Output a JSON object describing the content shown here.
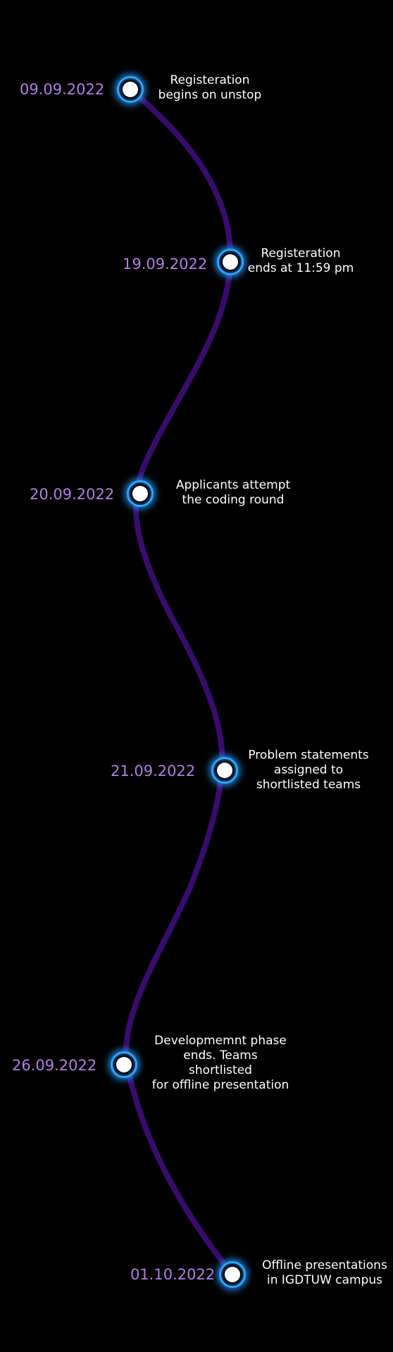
{
  "timeline": {
    "line_color": "#3a0b6e",
    "date_color": "#b07fe6",
    "node_glow_color": "#2aa6ff",
    "events": [
      {
        "date": "09.09.2022",
        "description": "Registeration\nbegins on unstop"
      },
      {
        "date": "19.09.2022",
        "description": "Registeration\nends at 11:59 pm"
      },
      {
        "date": "20.09.2022",
        "description": "Applicants attempt\nthe coding round"
      },
      {
        "date": "21.09.2022",
        "description": "Problem statements\nassigned to\nshortlisted teams"
      },
      {
        "date": "26.09.2022",
        "description": "Developmemnt phase\nends. Teams shortlisted\nfor offline presentation"
      },
      {
        "date": "01.10.2022",
        "description": "Offline presentations\nin IGDTUW campus"
      }
    ]
  }
}
